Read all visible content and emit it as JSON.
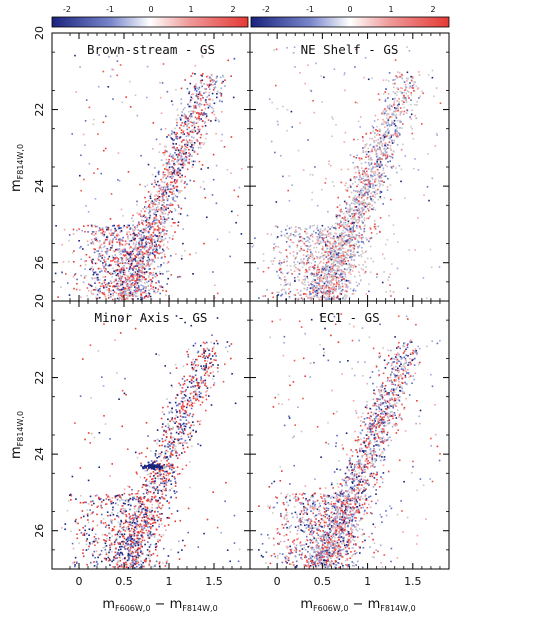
{
  "chart_data": [
    {
      "type": "heatmap",
      "panel": "top-left",
      "title": "Brown-stream - GS",
      "xlabel": "",
      "ylabel": "mF814W,0",
      "xlim": [
        -0.3,
        1.9
      ],
      "ylim": [
        27.0,
        20.0
      ],
      "xticks": [
        0,
        0.5,
        1,
        1.5
      ],
      "yticks": [
        20,
        22,
        24,
        26
      ],
      "contrast": "medium",
      "density": "moderate"
    },
    {
      "type": "heatmap",
      "panel": "top-right",
      "title": "NE Shelf - GS",
      "xlabel": "",
      "ylabel": "",
      "xlim": [
        -0.3,
        1.9
      ],
      "ylim": [
        27.0,
        20.0
      ],
      "xticks": [
        0,
        0.5,
        1,
        1.5
      ],
      "yticks": [
        20,
        22,
        24,
        26
      ],
      "contrast": "weak",
      "density": "moderate"
    },
    {
      "type": "heatmap",
      "panel": "bottom-left",
      "title": "Minor Axis - GS",
      "xlabel": "mF606W,0 - mF814W,0",
      "ylabel": "mF814W,0",
      "xlim": [
        -0.3,
        1.9
      ],
      "ylim": [
        27.0,
        20.0
      ],
      "xticks": [
        0,
        0.5,
        1,
        1.5
      ],
      "yticks": [
        20,
        22,
        24,
        26
      ],
      "contrast": "strong",
      "density": "sparse",
      "features": [
        "red clump near m=24.3 at color~0.82"
      ]
    },
    {
      "type": "heatmap",
      "panel": "bottom-right",
      "title": "EC1 - GS",
      "xlabel": "mF606W,0 - mF814W,0",
      "ylabel": "",
      "xlim": [
        -0.3,
        1.9
      ],
      "ylim": [
        27.0,
        20.0
      ],
      "xticks": [
        0,
        0.5,
        1,
        1.5
      ],
      "yticks": [
        20,
        22,
        24,
        26
      ],
      "contrast": "medium",
      "density": "moderate"
    }
  ],
  "colorbars": [
    {
      "range": [
        -2.5,
        2.5
      ],
      "ticks": [
        "-2",
        "-1",
        "0",
        "1",
        "2"
      ],
      "colormap": "blue-white-red"
    },
    {
      "range": [
        -2.5,
        2.5
      ],
      "ticks": [
        "-2",
        "-1",
        "0",
        "1",
        "2"
      ],
      "colormap": "blue-white-red"
    }
  ],
  "labels": {
    "y_main": "m",
    "y_sub": "F814W,0",
    "x_main_a": "m",
    "x_sub_a": "F606W,0",
    "x_minus": " − m",
    "x_sub_b": "F814W,0"
  },
  "colors": {
    "negative": "#1a237e",
    "neutral": "#ffffff",
    "positive": "#e53935"
  }
}
